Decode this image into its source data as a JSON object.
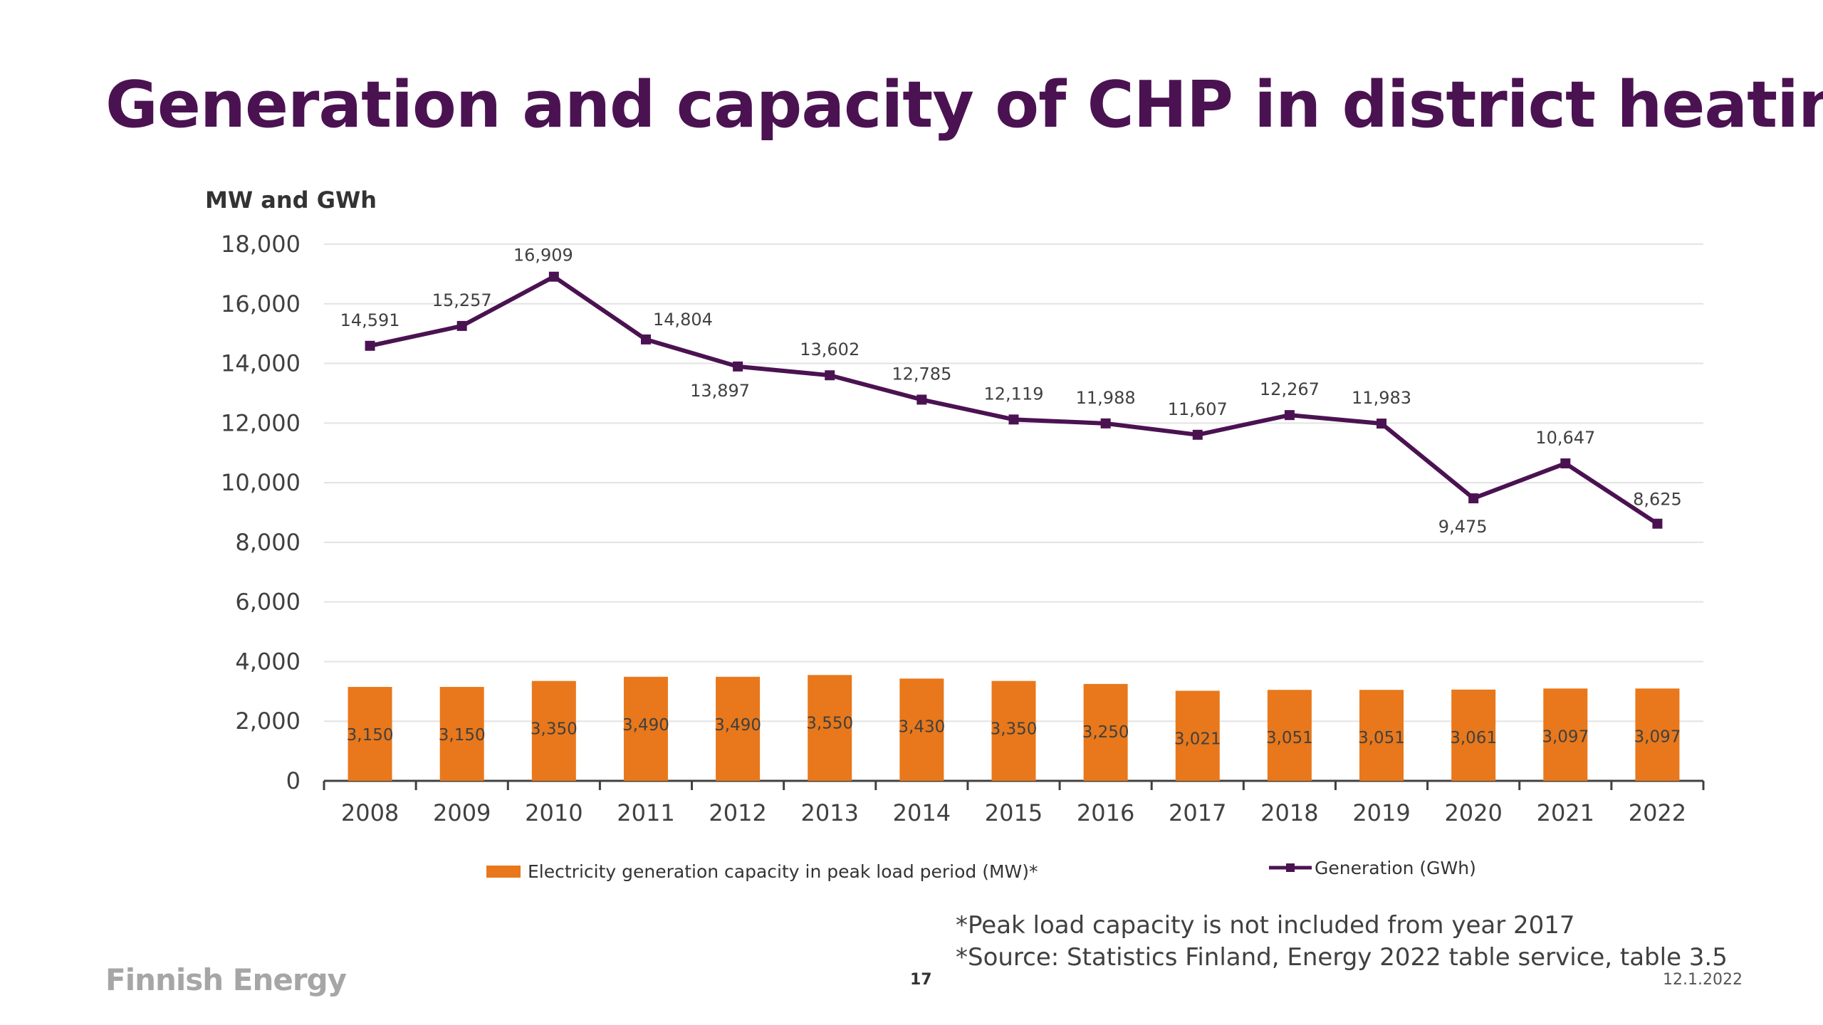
{
  "slide": {
    "title": "Generation and capacity of CHP in district heating",
    "unit_label": "MW and GWh",
    "footnote_1": "*Peak load capacity is not included from year 2017",
    "footnote_2": "*Source: Statistics Finland, Energy 2022 table service, table 3.5",
    "logo_text": "Finnish Energy",
    "page_number": "17",
    "date": "12.1.2022"
  },
  "chart_data": {
    "type": "bar",
    "title": "Generation and capacity of CHP in district heating",
    "ylabel": "MW and GWh",
    "ylim": [
      0,
      18000
    ],
    "yticks": [
      "0",
      "2,000",
      "4,000",
      "6,000",
      "8,000",
      "10,000",
      "12,000",
      "14,000",
      "16,000",
      "18,000"
    ],
    "categories": [
      "2008",
      "2009",
      "2010",
      "2011",
      "2012",
      "2013",
      "2014",
      "2015",
      "2016",
      "2017",
      "2018",
      "2019",
      "2020",
      "2021",
      "2022"
    ],
    "grid": true,
    "legend_position": "bottom",
    "series": [
      {
        "name": "Electricity generation capacity in peak load period (MW)*",
        "type": "bar",
        "color": "#e8781b",
        "values": [
          3150,
          3150,
          3350,
          3490,
          3490,
          3550,
          3430,
          3350,
          3250,
          3021,
          3051,
          3051,
          3061,
          3097,
          3097
        ],
        "labels": [
          "3,150",
          "3,150",
          "3,350",
          "3,490",
          "3,490",
          "3,550",
          "3,430",
          "3,350",
          "3,250",
          "3,021",
          "3,051",
          "3,051",
          "3,061",
          "3,097",
          "3,097"
        ]
      },
      {
        "name": "Generation (GWh)",
        "type": "line",
        "color": "#4b1252",
        "values": [
          14591,
          15257,
          16909,
          14804,
          13897,
          13602,
          12785,
          12119,
          11988,
          11607,
          12267,
          11983,
          9475,
          10647,
          8625
        ],
        "labels": [
          "14,591",
          "15,257",
          "16,909",
          "14,804",
          "13,897",
          "13,602",
          "12,785",
          "12,119",
          "11,988",
          "11,607",
          "12,267",
          "11,983",
          "9,475",
          "10,647",
          "8,625"
        ]
      }
    ]
  }
}
